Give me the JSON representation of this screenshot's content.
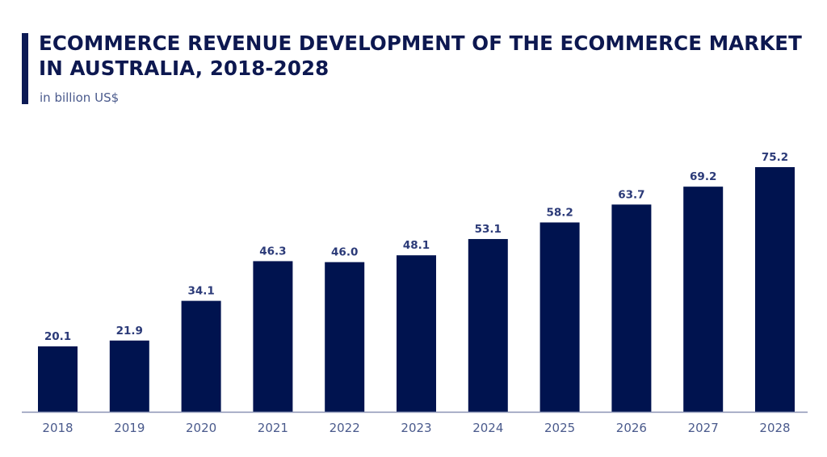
{
  "header": {
    "title_line1": "ECOMMERCE REVENUE DEVELOPMENT OF THE ECOMMERCE MARKET",
    "title_line2": "IN AUSTRALIA, 2018-2028",
    "subtitle": "in billion US$"
  },
  "colors": {
    "bar": "#00134f",
    "accent": "#0c1a55",
    "axis": "#8a93b5",
    "label": "#2b3a78"
  },
  "chart_data": {
    "type": "bar",
    "title": "ECOMMERCE REVENUE DEVELOPMENT OF THE ECOMMERCE MARKET IN AUSTRALIA, 2018-2028",
    "subtitle": "in billion US$",
    "xlabel": "",
    "ylabel": "in billion US$",
    "categories": [
      "2018",
      "2019",
      "2020",
      "2021",
      "2022",
      "2023",
      "2024",
      "2025",
      "2026",
      "2027",
      "2028"
    ],
    "values": [
      20.1,
      21.9,
      34.1,
      46.3,
      46.0,
      48.1,
      53.1,
      58.2,
      63.7,
      69.2,
      75.2
    ],
    "value_labels": [
      "20.1",
      "21.9",
      "34.1",
      "46.3",
      "46.0",
      "48.1",
      "53.1",
      "58.2",
      "63.7",
      "69.2",
      "75.2"
    ],
    "ylim": [
      0,
      75.2
    ],
    "grid": false,
    "legend": "none",
    "y_axis_visible": false
  }
}
